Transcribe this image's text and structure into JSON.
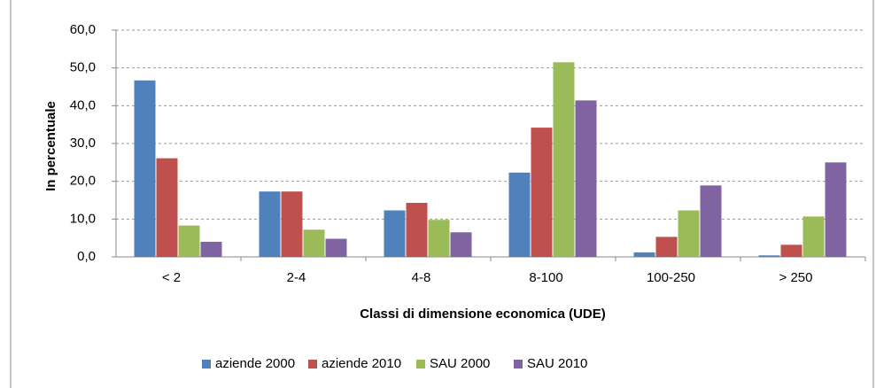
{
  "chart_data": {
    "type": "bar",
    "x_label": "Classi di dimensione economica (UDE)",
    "y_label": "In percentuale",
    "categories": [
      "< 2",
      "2-4",
      "4-8",
      "8-100",
      "100-250",
      "> 250"
    ],
    "series": [
      {
        "name": "aziende 2000",
        "color": "#4f81bd",
        "values": [
          46.7,
          17.3,
          12.3,
          22.3,
          1.2,
          0.4
        ]
      },
      {
        "name": "aziende 2010",
        "color": "#c0504d",
        "values": [
          26.1,
          17.3,
          14.3,
          34.2,
          5.3,
          3.2
        ]
      },
      {
        "name": "SAU 2000",
        "color": "#9bbb59",
        "values": [
          8.3,
          7.2,
          9.8,
          51.5,
          12.3,
          10.7
        ]
      },
      {
        "name": "SAU 2010",
        "color": "#8064a2",
        "values": [
          4.0,
          4.8,
          6.5,
          41.4,
          18.9,
          25.0
        ]
      }
    ],
    "ylim": [
      0,
      60
    ],
    "yticks": [
      {
        "value": 0,
        "label": "0,0"
      },
      {
        "value": 10,
        "label": "10,0"
      },
      {
        "value": 20,
        "label": "20,0"
      },
      {
        "value": 30,
        "label": "30,0"
      },
      {
        "value": 40,
        "label": "40,0"
      },
      {
        "value": 50,
        "label": "50,0"
      },
      {
        "value": 60,
        "label": "60,0"
      }
    ],
    "grid": true,
    "legend": "bottom"
  }
}
